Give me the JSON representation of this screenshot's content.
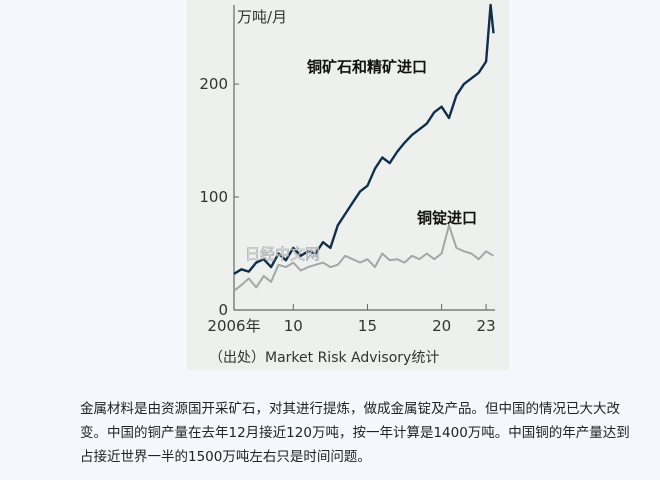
{
  "chart_data": {
    "type": "line",
    "unit_label": "万吨/月",
    "source": "（出处）Market Risk Advisory统计",
    "x_tick_labels": [
      "2006年",
      "10",
      "15",
      "20",
      "23"
    ],
    "x_tick_values": [
      2006,
      2010,
      2015,
      2020,
      2023
    ],
    "y_tick_labels": [
      "0",
      "100",
      "200"
    ],
    "y_tick_values": [
      0,
      100,
      200
    ],
    "xlim": [
      2006,
      2023.6
    ],
    "ylim": [
      0,
      270
    ],
    "grid": false,
    "watermark": "日经中文网",
    "series": [
      {
        "name": "铜矿石和精矿进口",
        "color": "#0f2f4a",
        "x": [
          2006,
          2006.5,
          2007,
          2007.5,
          2008,
          2008.5,
          2009,
          2009.5,
          2010,
          2010.5,
          2011,
          2011.5,
          2012,
          2012.5,
          2013,
          2013.5,
          2014,
          2014.5,
          2015,
          2015.5,
          2016,
          2016.5,
          2017,
          2017.5,
          2018,
          2018.5,
          2019,
          2019.5,
          2020,
          2020.5,
          2021,
          2021.5,
          2022,
          2022.5,
          2023,
          2023.3,
          2023.5
        ],
        "y": [
          32,
          36,
          34,
          42,
          45,
          38,
          50,
          44,
          55,
          48,
          52,
          50,
          60,
          55,
          75,
          85,
          95,
          105,
          110,
          125,
          135,
          130,
          140,
          148,
          155,
          160,
          165,
          175,
          180,
          170,
          190,
          200,
          205,
          210,
          220,
          270,
          245
        ]
      },
      {
        "name": "铜锭进口",
        "color": "#a4a7aa",
        "x": [
          2006,
          2006.5,
          2007,
          2007.5,
          2008,
          2008.5,
          2009,
          2009.5,
          2010,
          2010.5,
          2011,
          2011.5,
          2012,
          2012.5,
          2013,
          2013.5,
          2014,
          2014.5,
          2015,
          2015.5,
          2016,
          2016.5,
          2017,
          2017.5,
          2018,
          2018.5,
          2019,
          2019.5,
          2020,
          2020.5,
          2021,
          2021.5,
          2022,
          2022.5,
          2023,
          2023.5
        ],
        "y": [
          17,
          22,
          28,
          20,
          30,
          25,
          40,
          38,
          42,
          35,
          38,
          40,
          42,
          38,
          40,
          48,
          45,
          42,
          45,
          38,
          50,
          44,
          45,
          42,
          48,
          45,
          50,
          45,
          50,
          75,
          55,
          52,
          50,
          45,
          52,
          48
        ]
      }
    ]
  },
  "caption": "金属材料是由资源国开采矿石，对其进行提炼，做成金属锭及产品。但中国的情况已大大改变。中国的铜产量在去年12月接近120万吨，按一年计算是1400万吨。中国铜的年产量达到占接近世界一半的1500万吨左右只是时间问题。"
}
